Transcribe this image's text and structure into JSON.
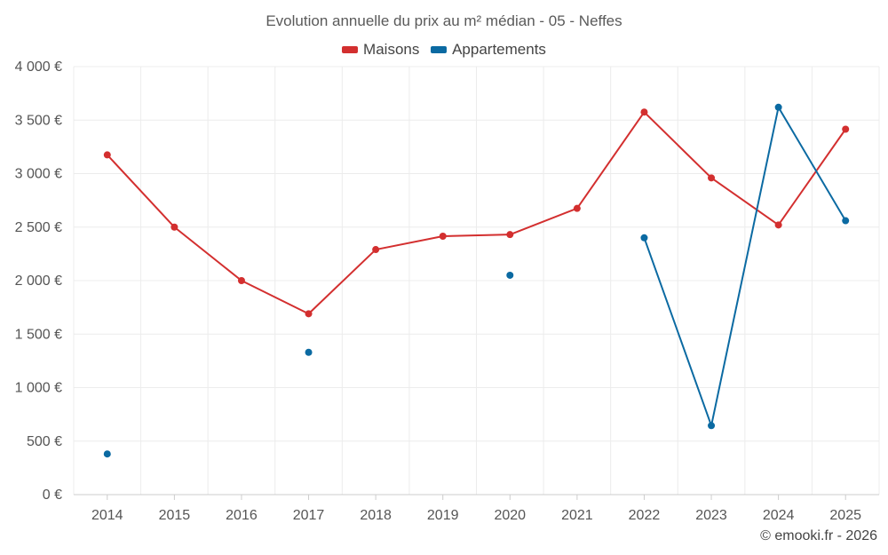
{
  "chart_data": {
    "type": "line",
    "title": "Evolution annuelle du prix au m² médian - 05 - Neffes",
    "categories": [
      "2014",
      "2015",
      "2016",
      "2017",
      "2018",
      "2019",
      "2020",
      "2021",
      "2022",
      "2023",
      "2024",
      "2025"
    ],
    "y_ticks": [
      "0 €",
      "500 €",
      "1 000 €",
      "1 500 €",
      "2 000 €",
      "2 500 €",
      "3 000 €",
      "3 500 €",
      "4 000 €"
    ],
    "ylim": [
      0,
      4000
    ],
    "grid": true,
    "legend_position": "top",
    "series": [
      {
        "name": "Maisons",
        "color": "#d32f2f",
        "values": [
          3175,
          2500,
          2000,
          1690,
          2290,
          2415,
          2430,
          2675,
          3575,
          2960,
          2520,
          3415
        ]
      },
      {
        "name": "Appartements",
        "color": "#0b6aa2",
        "values": [
          380,
          null,
          null,
          1330,
          null,
          null,
          2050,
          null,
          2400,
          645,
          3620,
          2560
        ]
      }
    ]
  },
  "credit": "© emooki.fr - 2026"
}
